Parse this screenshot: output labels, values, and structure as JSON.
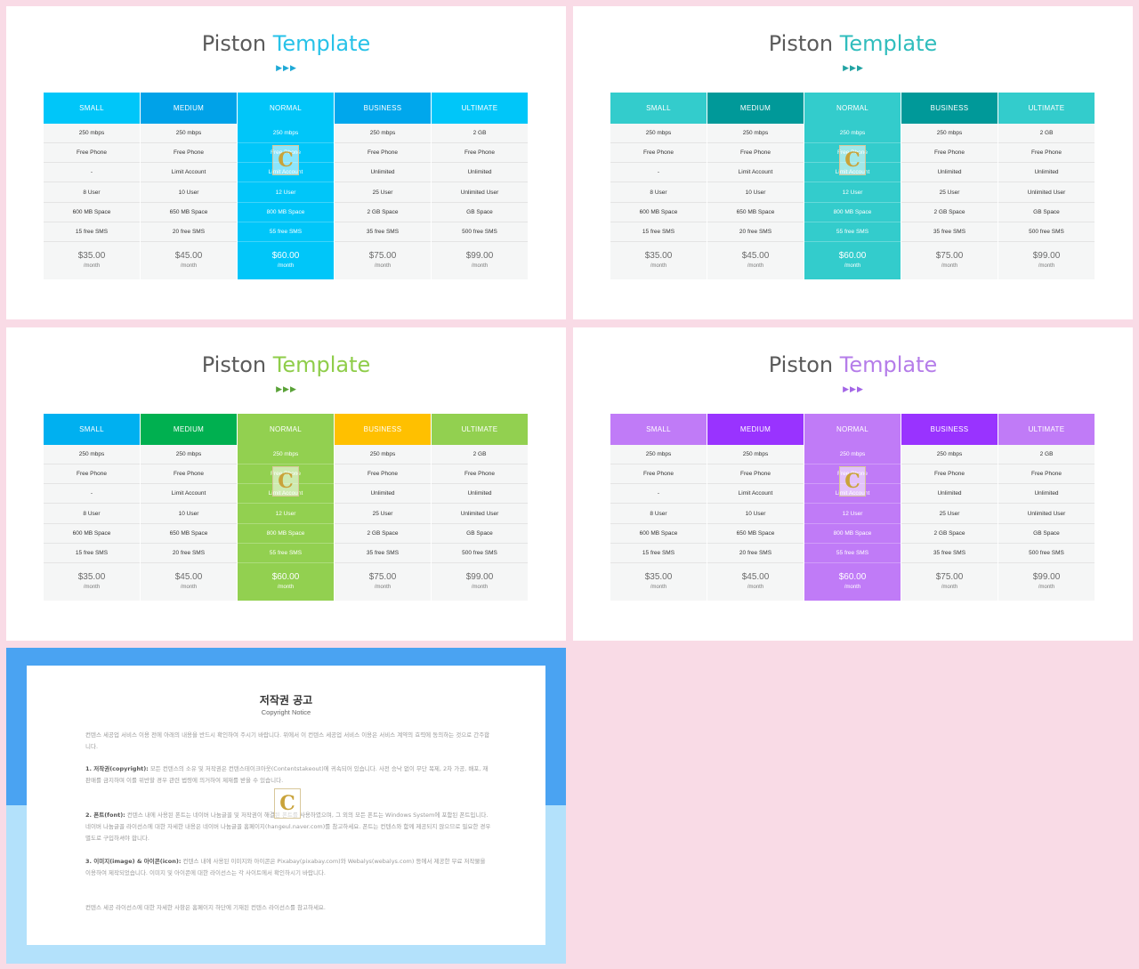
{
  "slides": [
    {
      "title_main": "Piston",
      "title_accent": "Template",
      "accent_color": "#27c2e8",
      "arrow_color": "#1fa9d6",
      "featured_color": "#00c6f9",
      "header_colors": [
        "#00c6f9",
        "#00a2e8",
        "#00c6f9",
        "#00a7ec",
        "#00c6f9"
      ]
    },
    {
      "title_main": "Piston",
      "title_accent": "Template",
      "accent_color": "#30bdbd",
      "arrow_color": "#22a3a3",
      "featured_color": "#33cccc",
      "header_colors": [
        "#33cccc",
        "#009999",
        "#33cccc",
        "#009999",
        "#33cccc"
      ]
    },
    {
      "title_main": "Piston",
      "title_accent": "Template",
      "accent_color": "#8fcd4a",
      "arrow_color": "#5aa238",
      "featured_color": "#92d050",
      "header_colors": [
        "#00b0f0",
        "#00b050",
        "#92d050",
        "#ffc000",
        "#92d050"
      ]
    },
    {
      "title_main": "Piston",
      "title_accent": "Template",
      "accent_color": "#b57de9",
      "arrow_color": "#a366e6",
      "featured_color": "#c07bf7",
      "header_colors": [
        "#c07bf7",
        "#9933ff",
        "#c07bf7",
        "#9933ff",
        "#c07bf7"
      ]
    }
  ],
  "pricing_columns": [
    {
      "name": "SMALL",
      "features": [
        "250 mbps",
        "Free Phone",
        "-",
        "8 User",
        "600 MB Space",
        "15 free SMS"
      ],
      "price": "$35.00",
      "period": "/month"
    },
    {
      "name": "MEDIUM",
      "features": [
        "250 mbps",
        "Free Phone",
        "Limit Account",
        "10 User",
        "650 MB Space",
        "20 free SMS"
      ],
      "price": "$45.00",
      "period": "/month"
    },
    {
      "name": "NORMAL",
      "features": [
        "250 mbps",
        "Free Phone",
        "Limit Account",
        "12 User",
        "800 MB Space",
        "55 free SMS"
      ],
      "price": "$60.00",
      "period": "/month"
    },
    {
      "name": "BUSINESS",
      "features": [
        "250 mbps",
        "Free Phone",
        "Unlimited",
        "25 User",
        "2 GB Space",
        "35 free SMS"
      ],
      "price": "$75.00",
      "period": "/month"
    },
    {
      "name": "ULTIMATE",
      "features": [
        "2 GB",
        "Free Phone",
        "Unlimited",
        "Unlimited User",
        "GB Space",
        "500 free SMS"
      ],
      "price": "$99.00",
      "period": "/month"
    }
  ],
  "watermark_letter": "C",
  "copyright": {
    "title": "저작권 공고",
    "subtitle": "Copyright Notice",
    "intro": "컨텐스 세공업 서비스 이용 전에 아래의 내용을 반드시 확인하여 주시기 바랍니다. 위에서 이 컨텐스 세공업 서비스 이용은 서비스 계약의 효력에 동의하는 것으로 간주합니다.",
    "p1_label": "1. 저작권(copyright):",
    "p1_text": " 모든 컨텐스의 소유 및 저작권은 컨텐스테이크아웃(Contentstakeout)에 귀속되어 있습니다. 사전 승낙 없이 무단 복제, 2차 가공, 배포, 재판매를 금지하며 이를 위반할 경우 관련 법령에 의거하여 제재를 받을 수 있습니다.",
    "p2_label": "2. 폰트(font):",
    "p2_text": " 컨텐스 내에 사용된 폰트는 네이버 나눔글꼴 및 저작권이 해결된 폰트를 사용하였으며, 그 외의 모든 폰트는 Windows System에 포함된 폰트입니다. 네이버 나눔글꼴 라이선스에 대한 자세한 내용은 네이버 나눔글꼴 홈페이지(hangeul.naver.com)를 참고하세요. 폰트는 컨텐스와 함께 제공되지 않으므로 필요한 경우 별도로 구입하셔야 합니다.",
    "p3_label": "3. 이미지(image) & 아이콘(icon):",
    "p3_text": " 컨텐스 내에 사용된 이미지와 아이콘은 Pixabay(pixabay.com)와 Webalys(webalys.com) 등에서 제공한 무료 저작물을 이용하여 제작되었습니다. 이미지 및 아이콘에 대한 라이선스는 각 사이트에서 확인하시기 바랍니다.",
    "closing": "컨텐스 세공 라이선스에 대한 자세한 사항은 홈페이지 하단에 기재된 컨텐스 라이선스를 참고하세요."
  }
}
